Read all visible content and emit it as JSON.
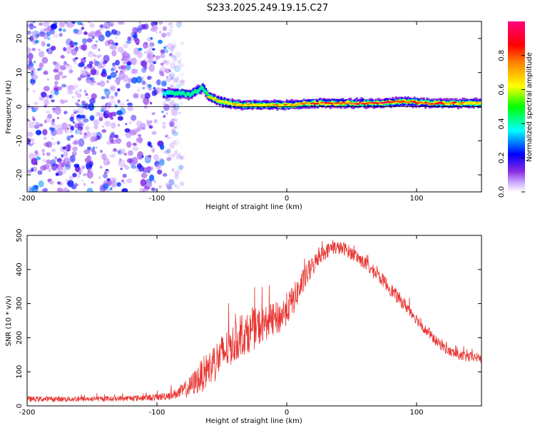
{
  "title": "S233.2025.249.19.15.C27",
  "colors": {
    "snr_line": "#e8322e",
    "zero_line": "#000000"
  },
  "chart_data": [
    {
      "type": "heatmap",
      "title": "S233.2025.249.19.15.C27",
      "xlabel": "Height of straight line (km)",
      "ylabel": "Frequency (Hz)",
      "xlim": [
        -200,
        150
      ],
      "ylim": [
        -25,
        25
      ],
      "x_ticks": [
        -200,
        -100,
        0,
        100
      ],
      "x_tick_labels": [
        "-200",
        "-100",
        "0",
        "100"
      ],
      "y_ticks": [
        -20,
        -10,
        0,
        10,
        20
      ],
      "y_tick_labels": [
        "-20",
        "-10",
        "0",
        "10",
        "20"
      ],
      "colorbar": {
        "label": "Normalized spectral amplitude",
        "range": [
          0,
          1
        ],
        "ticks": [
          0,
          0.2,
          0.4,
          0.6,
          0.8
        ],
        "tick_labels": [
          "0.0",
          "0.2",
          "0.4",
          "0.6",
          "0.8"
        ],
        "colormap": "rainbow (white-violet-blue-cyan-green-yellow-orange-red-magenta)"
      },
      "ridge": {
        "x": [
          -95,
          -85,
          -75,
          -65,
          -60,
          -55,
          -45,
          -35,
          -25,
          -15,
          -5,
          5,
          15,
          30,
          50,
          70,
          90,
          110,
          130,
          150
        ],
        "freq": [
          4,
          4,
          3.5,
          5.5,
          3,
          2,
          1,
          0.5,
          0.5,
          0.5,
          0.5,
          0.5,
          1,
          1,
          1,
          1,
          1.5,
          1,
          1,
          1
        ],
        "amplitude": [
          0.35,
          0.45,
          0.5,
          0.45,
          0.55,
          0.6,
          0.6,
          0.65,
          0.65,
          0.7,
          0.7,
          0.75,
          0.8,
          0.85,
          0.85,
          0.9,
          0.85,
          0.8,
          0.75,
          0.7
        ]
      },
      "noise_region": {
        "x_range": [
          -200,
          -85
        ],
        "freq_range": [
          -25,
          25
        ],
        "amplitude": [
          0.05,
          0.3
        ]
      }
    },
    {
      "type": "line",
      "xlabel": "Height of straight line (km)",
      "ylabel": "SNR (10 * v/v)",
      "xlim": [
        -200,
        150
      ],
      "ylim": [
        0,
        500
      ],
      "x_ticks": [
        -200,
        -100,
        0,
        100
      ],
      "x_tick_labels": [
        "-200",
        "-100",
        "0",
        "100"
      ],
      "y_ticks": [
        0,
        100,
        200,
        300,
        400,
        500
      ],
      "y_tick_labels": [
        "0",
        "100",
        "200",
        "300",
        "400",
        "500"
      ],
      "series": [
        {
          "name": "SNR",
          "x": [
            -200,
            -175,
            -150,
            -125,
            -100,
            -85,
            -75,
            -65,
            -55,
            -45,
            -35,
            -25,
            -15,
            -5,
            5,
            15,
            25,
            35,
            45,
            55,
            65,
            75,
            85,
            95,
            105,
            115,
            125,
            135,
            150
          ],
          "values": [
            20,
            20,
            20,
            22,
            25,
            35,
            55,
            90,
            130,
            170,
            200,
            225,
            245,
            260,
            310,
            380,
            440,
            465,
            460,
            435,
            400,
            365,
            320,
            280,
            230,
            190,
            160,
            145,
            140
          ],
          "noise_amplitude": [
            8,
            8,
            8,
            8,
            10,
            15,
            30,
            50,
            60,
            60,
            55,
            60,
            50,
            50,
            45,
            35,
            25,
            20,
            20,
            20,
            20,
            20,
            20,
            18,
            15,
            15,
            15,
            15,
            15
          ]
        }
      ]
    }
  ]
}
